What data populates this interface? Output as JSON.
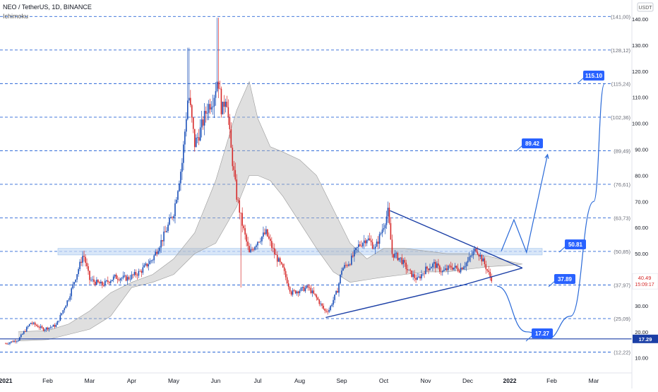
{
  "header": {
    "symbol_line": "NEO / TetherUS, 1D, BINANCE",
    "indicator": "Ichimoku"
  },
  "currency_badge": "USDT",
  "chart_data": {
    "type": "line",
    "title": "NEO / TetherUS, 1D, BINANCE",
    "xlabel": "",
    "ylabel": "",
    "ylim": [
      0,
      145
    ],
    "grid": false,
    "x_ticks": [
      "2021",
      "Feb",
      "Mar",
      "Apr",
      "May",
      "Jun",
      "Jul",
      "Aug",
      "Sep",
      "Oct",
      "Nov",
      "Dec",
      "2022",
      "Feb",
      "Mar"
    ],
    "y_ticks": [
      10,
      20,
      30,
      40,
      50,
      60,
      70,
      80,
      90,
      100,
      110,
      120,
      130,
      140
    ],
    "y_tick_labels": [
      "10.00",
      "20.00",
      "30.00",
      "40.00",
      "50.00",
      "60.00",
      "70.00",
      "80.00",
      "90.00",
      "100.00",
      "110.00",
      "120.00",
      "130.00",
      "140.00"
    ],
    "levels": [
      {
        "value": 141.0,
        "label": "(141,00)"
      },
      {
        "value": 128.12,
        "label": "(128,12)"
      },
      {
        "value": 115.24,
        "label": "(115,24)"
      },
      {
        "value": 102.36,
        "label": "(102,36)"
      },
      {
        "value": 89.49,
        "label": "(89,49)"
      },
      {
        "value": 76.61,
        "label": "(76,61)"
      },
      {
        "value": 63.73,
        "label": "(63,73)"
      },
      {
        "value": 50.85,
        "label": "(50,85)"
      },
      {
        "value": 37.97,
        "label": "(37,97)"
      },
      {
        "value": 25.09,
        "label": "(25,09)"
      },
      {
        "value": 12.22,
        "label": "(12,22)"
      }
    ],
    "support_line": {
      "value": 17.29,
      "label": "17.29"
    },
    "current_price": {
      "value": 40.49,
      "label": "40.49",
      "countdown": "15:09:17"
    },
    "targets": [
      {
        "value": 115.1,
        "label": "115.10"
      },
      {
        "value": 89.42,
        "label": "89.42"
      },
      {
        "value": 50.81,
        "label": "50.81"
      },
      {
        "value": 37.89,
        "label": "37.89"
      },
      {
        "value": 17.27,
        "label": "17.27"
      }
    ],
    "zone": {
      "low": 49.5,
      "high": 52.0
    },
    "price_path": [
      {
        "month": 0.0,
        "price": 15.5
      },
      {
        "month": 0.3,
        "price": 17.0
      },
      {
        "month": 0.6,
        "price": 23.5
      },
      {
        "month": 0.9,
        "price": 21.0
      },
      {
        "month": 1.2,
        "price": 22.5
      },
      {
        "month": 1.5,
        "price": 33.0
      },
      {
        "month": 1.75,
        "price": 45.0
      },
      {
        "month": 1.85,
        "price": 50.0
      },
      {
        "month": 2.0,
        "price": 40.0
      },
      {
        "month": 2.3,
        "price": 38.0
      },
      {
        "month": 2.6,
        "price": 41.0
      },
      {
        "month": 2.9,
        "price": 40.5
      },
      {
        "month": 3.2,
        "price": 43.0
      },
      {
        "month": 3.5,
        "price": 48.0
      },
      {
        "month": 3.8,
        "price": 58.0
      },
      {
        "month": 4.0,
        "price": 66.0
      },
      {
        "month": 4.2,
        "price": 85.0
      },
      {
        "month": 4.35,
        "price": 112.0
      },
      {
        "month": 4.5,
        "price": 92.0
      },
      {
        "month": 4.65,
        "price": 98.0
      },
      {
        "month": 4.8,
        "price": 106.0
      },
      {
        "month": 4.95,
        "price": 110.0
      },
      {
        "month": 5.05,
        "price": 118.0
      },
      {
        "month": 5.15,
        "price": 104.0
      },
      {
        "month": 5.25,
        "price": 112.0
      },
      {
        "month": 5.35,
        "price": 92.0
      },
      {
        "month": 5.5,
        "price": 72.0
      },
      {
        "month": 5.65,
        "price": 60.0
      },
      {
        "month": 5.8,
        "price": 50.0
      },
      {
        "month": 6.0,
        "price": 55.0
      },
      {
        "month": 6.2,
        "price": 58.0
      },
      {
        "month": 6.4,
        "price": 50.0
      },
      {
        "month": 6.6,
        "price": 44.0
      },
      {
        "month": 6.8,
        "price": 35.0
      },
      {
        "month": 7.0,
        "price": 36.0
      },
      {
        "month": 7.2,
        "price": 37.0
      },
      {
        "month": 7.4,
        "price": 33.0
      },
      {
        "month": 7.6,
        "price": 28.0
      },
      {
        "month": 7.7,
        "price": 28.5
      },
      {
        "month": 7.9,
        "price": 36.0
      },
      {
        "month": 8.0,
        "price": 44.0
      },
      {
        "month": 8.2,
        "price": 47.0
      },
      {
        "month": 8.4,
        "price": 53.0
      },
      {
        "month": 8.6,
        "price": 56.0
      },
      {
        "month": 8.8,
        "price": 52.0
      },
      {
        "month": 9.0,
        "price": 61.0
      },
      {
        "month": 9.1,
        "price": 66.0
      },
      {
        "month": 9.2,
        "price": 50.0
      },
      {
        "month": 9.4,
        "price": 48.0
      },
      {
        "month": 9.6,
        "price": 43.0
      },
      {
        "month": 9.8,
        "price": 40.0
      },
      {
        "month": 10.0,
        "price": 44.0
      },
      {
        "month": 10.2,
        "price": 46.0
      },
      {
        "month": 10.4,
        "price": 43.0
      },
      {
        "month": 10.6,
        "price": 45.0
      },
      {
        "month": 10.8,
        "price": 44.0
      },
      {
        "month": 11.0,
        "price": 47.0
      },
      {
        "month": 11.2,
        "price": 52.0
      },
      {
        "month": 11.4,
        "price": 46.0
      },
      {
        "month": 11.55,
        "price": 40.49
      }
    ],
    "cloud_a": [
      {
        "month": 0.3,
        "price": 20.0
      },
      {
        "month": 1.0,
        "price": 20.5
      },
      {
        "month": 1.5,
        "price": 23.0
      },
      {
        "month": 2.0,
        "price": 28.0
      },
      {
        "month": 2.5,
        "price": 35.0
      },
      {
        "month": 3.0,
        "price": 39.0
      },
      {
        "month": 3.5,
        "price": 42.0
      },
      {
        "month": 4.0,
        "price": 48.0
      },
      {
        "month": 4.5,
        "price": 58.0
      },
      {
        "month": 5.0,
        "price": 78.0
      },
      {
        "month": 5.5,
        "price": 105.0
      },
      {
        "month": 5.8,
        "price": 116.0
      },
      {
        "month": 6.0,
        "price": 102.0
      },
      {
        "month": 6.3,
        "price": 91.0
      },
      {
        "month": 6.6,
        "price": 89.0
      },
      {
        "month": 7.0,
        "price": 86.0
      },
      {
        "month": 7.4,
        "price": 80.0
      },
      {
        "month": 7.8,
        "price": 67.0
      },
      {
        "month": 8.2,
        "price": 54.0
      },
      {
        "month": 8.6,
        "price": 48.0
      },
      {
        "month": 9.0,
        "price": 52.0
      },
      {
        "month": 9.5,
        "price": 52.0
      },
      {
        "month": 10.0,
        "price": 51.0
      },
      {
        "month": 10.5,
        "price": 50.0
      },
      {
        "month": 11.0,
        "price": 50.0
      },
      {
        "month": 11.5,
        "price": 49.0
      },
      {
        "month": 12.0,
        "price": 47.0
      },
      {
        "month": 12.3,
        "price": 46.0
      }
    ],
    "cloud_b": [
      {
        "month": 0.3,
        "price": 16.5
      },
      {
        "month": 1.0,
        "price": 17.0
      },
      {
        "month": 1.5,
        "price": 19.0
      },
      {
        "month": 2.0,
        "price": 21.0
      },
      {
        "month": 2.5,
        "price": 26.0
      },
      {
        "month": 3.0,
        "price": 37.0
      },
      {
        "month": 3.5,
        "price": 39.0
      },
      {
        "month": 4.0,
        "price": 42.0
      },
      {
        "month": 4.5,
        "price": 50.0
      },
      {
        "month": 5.0,
        "price": 54.0
      },
      {
        "month": 5.5,
        "price": 68.0
      },
      {
        "month": 5.8,
        "price": 80.0
      },
      {
        "month": 6.0,
        "price": 80.0
      },
      {
        "month": 6.3,
        "price": 78.0
      },
      {
        "month": 6.6,
        "price": 72.0
      },
      {
        "month": 7.0,
        "price": 62.0
      },
      {
        "month": 7.4,
        "price": 52.0
      },
      {
        "month": 7.8,
        "price": 43.0
      },
      {
        "month": 8.2,
        "price": 39.0
      },
      {
        "month": 8.6,
        "price": 40.0
      },
      {
        "month": 9.0,
        "price": 41.0
      },
      {
        "month": 9.5,
        "price": 42.0
      },
      {
        "month": 10.0,
        "price": 43.0
      },
      {
        "month": 10.5,
        "price": 43.0
      },
      {
        "month": 11.0,
        "price": 44.0
      },
      {
        "month": 11.5,
        "price": 45.0
      },
      {
        "month": 12.0,
        "price": 45.5
      },
      {
        "month": 12.3,
        "price": 46.0
      }
    ],
    "triangle": [
      {
        "month": 7.62,
        "price": 25.5
      },
      {
        "month": 9.15,
        "price": 66.5
      },
      {
        "month": 12.3,
        "price": 44.5
      }
    ],
    "triangle_lower_pivot": {
      "month": 10.9,
      "price": 38.0
    },
    "projection_up": [
      {
        "month": 11.8,
        "price": 51.0
      },
      {
        "month": 12.1,
        "price": 63.0
      },
      {
        "month": 12.4,
        "price": 50.5
      },
      {
        "month": 12.9,
        "price": 88.0
      }
    ],
    "projection_curve": [
      {
        "month": 11.7,
        "price": 37.5
      },
      {
        "month": 12.4,
        "price": 20.0
      },
      {
        "month": 12.9,
        "price": 17.3
      },
      {
        "month": 13.45,
        "price": 26.0
      },
      {
        "month": 14.0,
        "price": 70.0
      },
      {
        "month": 14.25,
        "price": 115.0
      }
    ]
  }
}
